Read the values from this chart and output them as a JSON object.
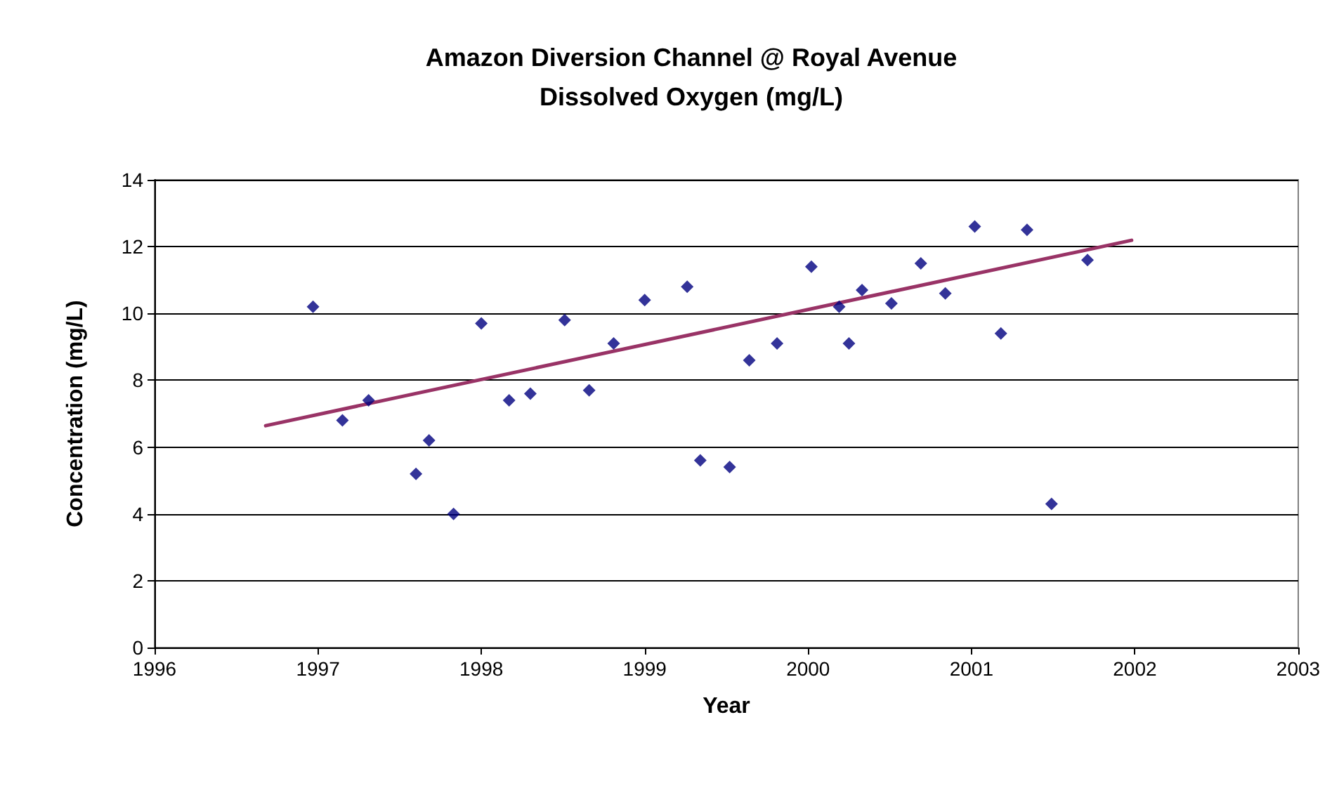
{
  "chart_data": {
    "type": "scatter",
    "title": "Amazon Diversion Channel @ Royal Avenue\nDissolved Oxygen (mg/L)",
    "xlabel": "Year",
    "ylabel": "Concentration (mg/L)",
    "x": [
      1996.97,
      1997.15,
      1997.31,
      1997.6,
      1997.68,
      1997.83,
      1998.0,
      1998.17,
      1998.3,
      1998.51,
      1998.66,
      1998.81,
      1999.0,
      1999.26,
      1999.34,
      1999.52,
      1999.64,
      1999.81,
      2000.02,
      2000.19,
      2000.25,
      2000.33,
      2000.51,
      2000.69,
      2000.84,
      2001.02,
      2001.18,
      2001.34,
      2001.49,
      2001.71
    ],
    "series": [
      {
        "color": "#000080",
        "marker": "diamond",
        "values": [
          10.2,
          6.8,
          7.4,
          5.2,
          6.2,
          4.0,
          9.7,
          7.4,
          7.6,
          9.8,
          7.7,
          9.1,
          10.4,
          10.8,
          5.6,
          5.4,
          8.6,
          9.1,
          11.4,
          10.2,
          9.1,
          10.7,
          10.3,
          11.5,
          10.6,
          12.6,
          9.4,
          12.5,
          4.3,
          11.6
        ]
      },
      {
        "type": "line",
        "color": "#993366",
        "marker": "none",
        "x": [
          1996.68,
          2001.98
        ],
        "values": [
          6.64,
          12.19
        ]
      }
    ],
    "xlim": [
      1996,
      2003
    ],
    "xticks": [
      1996,
      1997,
      1998,
      1999,
      2000,
      2001,
      2002,
      2003
    ],
    "ylim": [
      0,
      14
    ],
    "yticks": [
      0,
      2,
      4,
      6,
      8,
      10,
      12,
      14
    ],
    "grid": "y"
  }
}
